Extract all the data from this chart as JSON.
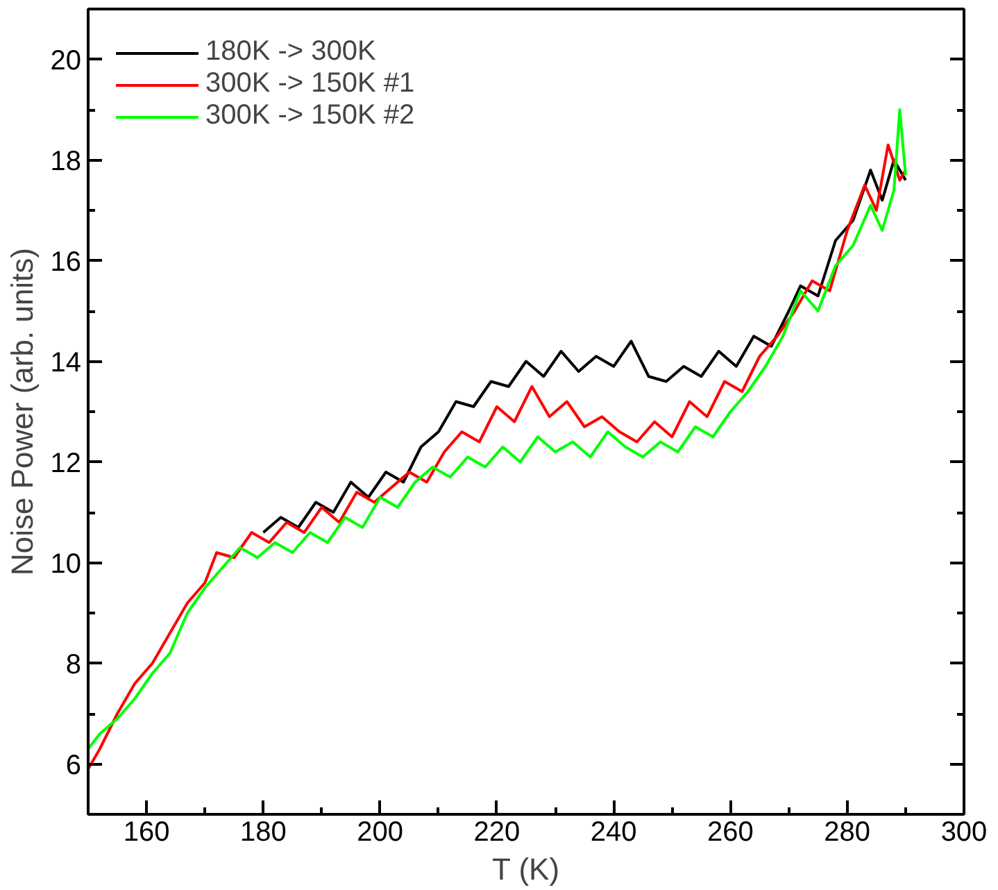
{
  "chart_data": {
    "type": "line",
    "xlabel": "T (K)",
    "ylabel": "Noise Power (arb. units)",
    "xlim": [
      150,
      300
    ],
    "ylim": [
      5,
      21
    ],
    "xticks": [
      160,
      180,
      200,
      220,
      240,
      260,
      280,
      300
    ],
    "yticks": [
      6,
      8,
      10,
      12,
      14,
      16,
      18,
      20
    ],
    "grid": false,
    "legend": "top left",
    "marker": "none",
    "line_style": "solid",
    "series": [
      {
        "name": "180K -> 300K",
        "color": "#000000",
        "x": [
          180,
          183,
          186,
          189,
          192,
          195,
          198,
          201,
          204,
          207,
          210,
          213,
          216,
          219,
          222,
          225,
          228,
          231,
          234,
          237,
          240,
          243,
          246,
          249,
          252,
          255,
          258,
          261,
          264,
          267,
          270,
          272,
          275,
          278,
          281,
          284,
          286,
          288,
          290
        ],
        "values": [
          10.6,
          10.9,
          10.7,
          11.2,
          11.0,
          11.6,
          11.3,
          11.8,
          11.6,
          12.3,
          12.6,
          13.2,
          13.1,
          13.6,
          13.5,
          14.0,
          13.7,
          14.2,
          13.8,
          14.1,
          13.9,
          14.4,
          13.7,
          13.6,
          13.9,
          13.7,
          14.2,
          13.9,
          14.5,
          14.3,
          15.0,
          15.5,
          15.3,
          16.4,
          16.8,
          17.8,
          17.2,
          18.0,
          17.6
        ]
      },
      {
        "name": "300K -> 150K #1",
        "color": "#ff0000",
        "x": [
          150,
          152,
          155,
          158,
          161,
          164,
          167,
          170,
          172,
          175,
          178,
          181,
          184,
          187,
          190,
          193,
          196,
          199,
          202,
          205,
          208,
          211,
          214,
          217,
          220,
          223,
          226,
          229,
          232,
          235,
          238,
          241,
          244,
          247,
          250,
          253,
          256,
          259,
          262,
          265,
          268,
          271,
          274,
          277,
          280,
          283,
          285,
          287,
          289,
          290
        ],
        "values": [
          5.9,
          6.3,
          7.0,
          7.6,
          8.0,
          8.6,
          9.2,
          9.6,
          10.2,
          10.1,
          10.6,
          10.4,
          10.8,
          10.6,
          11.1,
          10.8,
          11.4,
          11.2,
          11.5,
          11.8,
          11.6,
          12.2,
          12.6,
          12.4,
          13.1,
          12.8,
          13.5,
          12.9,
          13.2,
          12.7,
          12.9,
          12.6,
          12.4,
          12.8,
          12.5,
          13.2,
          12.9,
          13.6,
          13.4,
          14.1,
          14.5,
          15.0,
          15.6,
          15.4,
          16.6,
          17.5,
          17.0,
          18.3,
          17.6,
          17.8
        ]
      },
      {
        "name": "300K -> 150K #2",
        "color": "#00ff00",
        "x": [
          150,
          152,
          155,
          158,
          161,
          164,
          167,
          170,
          173,
          176,
          179,
          182,
          185,
          188,
          191,
          194,
          197,
          200,
          203,
          206,
          209,
          212,
          215,
          218,
          221,
          224,
          227,
          230,
          233,
          236,
          239,
          242,
          245,
          248,
          251,
          254,
          257,
          260,
          263,
          266,
          269,
          272,
          275,
          278,
          281,
          284,
          286,
          288,
          289,
          290
        ],
        "values": [
          6.3,
          6.6,
          6.9,
          7.3,
          7.8,
          8.2,
          9.0,
          9.5,
          9.9,
          10.3,
          10.1,
          10.4,
          10.2,
          10.6,
          10.4,
          10.9,
          10.7,
          11.3,
          11.1,
          11.6,
          11.9,
          11.7,
          12.1,
          11.9,
          12.3,
          12.0,
          12.5,
          12.2,
          12.4,
          12.1,
          12.6,
          12.3,
          12.1,
          12.4,
          12.2,
          12.7,
          12.5,
          13.0,
          13.4,
          13.9,
          14.5,
          15.4,
          15.0,
          15.9,
          16.3,
          17.1,
          16.6,
          17.4,
          19.0,
          17.7
        ]
      }
    ]
  }
}
